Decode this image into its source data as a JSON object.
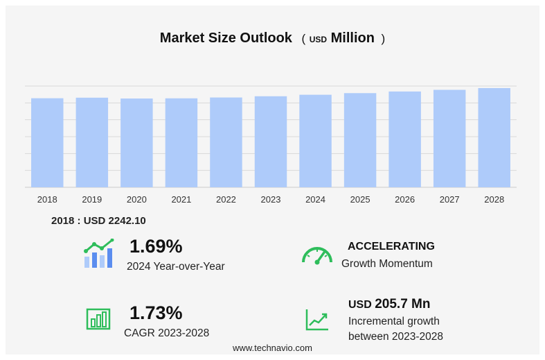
{
  "title": {
    "main": "Market Size Outlook",
    "open_paren": "(",
    "currency": "USD",
    "unit": "Million",
    "close_paren": ")"
  },
  "chart_data": {
    "type": "bar",
    "categories": [
      "2018",
      "2019",
      "2020",
      "2021",
      "2022",
      "2023",
      "2024",
      "2025",
      "2026",
      "2027",
      "2028"
    ],
    "values": [
      2242.1,
      2256,
      2235,
      2240,
      2261,
      2292,
      2330,
      2371,
      2412,
      2454,
      2498
    ],
    "ylim": [
      0,
      2550
    ],
    "grid": true,
    "bar_color": "#aecbfa",
    "grid_color": "#d9d9d9"
  },
  "base_year": {
    "text": "2018 : USD  2242.10"
  },
  "stats": {
    "yoy": {
      "value": "1.69%",
      "label": "2024 Year-over-Year",
      "icon": "growth-bars-icon"
    },
    "momentum": {
      "value": "ACCELERATING",
      "label": "Growth Momentum",
      "icon": "speedometer-icon"
    },
    "cagr": {
      "value": "1.73%",
      "label": "CAGR 2023-2028",
      "icon": "bar-chart-icon"
    },
    "incremental": {
      "currency": "USD",
      "value": "205.7 Mn",
      "label_line1": "Incremental growth",
      "label_line2": "between 2023-2028",
      "icon": "trend-chart-icon"
    }
  },
  "footer": "www.technavio.com",
  "colors": {
    "accent_green": "#2ebd5b",
    "accent_blue": "#5b8def"
  }
}
